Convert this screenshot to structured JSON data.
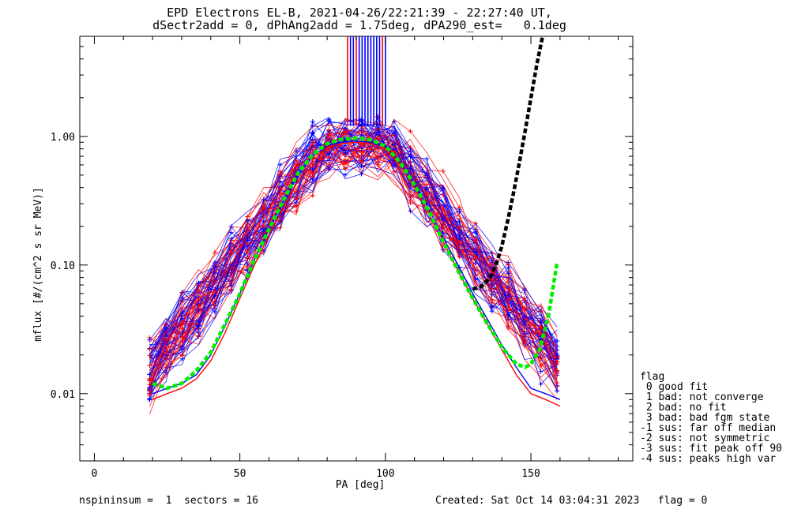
{
  "title_line1": "EPD Electrons EL-B, 2021-04-26/22:21:39 - 22:27:40 UT,",
  "title_line2": "dSectr2add = 0, dPhAng2add = 1.75deg, dPA290_est=   0.1deg",
  "footer_left": "nspininsum =  1  sectors = 16",
  "footer_right": "Created: Sat Oct 14 03:04:31 2023   flag = 0",
  "legend": {
    "title": "flag",
    "items": [
      " 0 good fit",
      " 1 bad: not converge",
      " 2 bad: no fit",
      " 3 bad: bad fgm state",
      "-1 sus: far off median",
      "-2 sus: not symmetric",
      "-3 sus: fit peak off 90",
      "-4 sus: peaks high var"
    ]
  },
  "colors": {
    "series_a": "#ff0000",
    "series_b": "#0000ff",
    "fit_main": "#00ee00",
    "fit_alt": "#000000"
  },
  "chart_data": {
    "type": "line",
    "xlabel": "PA [deg]",
    "ylabel": "mflux [#/(cm^2 s sr MeV)]",
    "xlim": [
      -5,
      185
    ],
    "ylim": [
      0.003,
      6.0
    ],
    "yscale": "log",
    "xticks": [
      0,
      50,
      100,
      150
    ],
    "xtick_labels": [
      "0",
      "50",
      "100",
      "150"
    ],
    "yticks": [
      0.01,
      0.1,
      1.0
    ],
    "ytick_labels": [
      "0.01",
      "0.10",
      "1.00"
    ],
    "series": [
      {
        "color": "red",
        "x": [
          20,
          25,
          30,
          35,
          40,
          45,
          50,
          55,
          60,
          65,
          70,
          75,
          80,
          85,
          90,
          95,
          100,
          105,
          110,
          115,
          120,
          125,
          130,
          135,
          140,
          145,
          150,
          155,
          160
        ],
        "y": [
          0.009,
          0.01,
          0.011,
          0.013,
          0.018,
          0.03,
          0.055,
          0.1,
          0.17,
          0.28,
          0.45,
          0.65,
          0.82,
          0.88,
          0.9,
          0.88,
          0.8,
          0.6,
          0.4,
          0.25,
          0.15,
          0.09,
          0.055,
          0.035,
          0.022,
          0.014,
          0.01,
          0.009,
          0.008
        ]
      },
      {
        "color": "blue",
        "x": [
          20,
          25,
          30,
          35,
          40,
          45,
          50,
          55,
          60,
          65,
          70,
          75,
          80,
          85,
          90,
          95,
          100,
          105,
          110,
          115,
          120,
          125,
          130,
          135,
          140,
          145,
          150,
          155,
          160
        ],
        "y": [
          0.01,
          0.011,
          0.012,
          0.014,
          0.02,
          0.034,
          0.06,
          0.11,
          0.19,
          0.31,
          0.5,
          0.7,
          0.85,
          0.9,
          0.92,
          0.9,
          0.83,
          0.63,
          0.42,
          0.27,
          0.16,
          0.1,
          0.06,
          0.038,
          0.024,
          0.016,
          0.011,
          0.01,
          0.009
        ]
      },
      {
        "color": "green",
        "x": [
          20,
          25,
          30,
          35,
          40,
          45,
          50,
          55,
          60,
          65,
          70,
          75,
          80,
          85,
          90,
          95,
          100,
          105,
          110,
          115,
          120,
          125,
          130,
          135,
          140,
          145,
          148,
          150,
          153,
          156,
          159
        ],
        "y": [
          0.012,
          0.011,
          0.012,
          0.015,
          0.021,
          0.035,
          0.06,
          0.11,
          0.19,
          0.32,
          0.52,
          0.72,
          0.88,
          0.95,
          0.97,
          0.94,
          0.84,
          0.63,
          0.42,
          0.26,
          0.15,
          0.09,
          0.055,
          0.035,
          0.023,
          0.017,
          0.016,
          0.017,
          0.022,
          0.04,
          0.105
        ]
      },
      {
        "color": "black",
        "x": [
          130,
          133,
          136,
          138,
          140,
          142,
          144,
          146,
          148,
          150,
          152,
          154
        ],
        "y": [
          0.065,
          0.068,
          0.08,
          0.1,
          0.14,
          0.22,
          0.36,
          0.62,
          1.1,
          2.0,
          3.6,
          6.0
        ]
      }
    ],
    "spike_x": [
      87,
      88,
      89,
      90,
      91,
      92,
      93,
      94,
      95,
      96,
      97,
      98,
      99,
      100
    ],
    "spike_ymin": 1.2,
    "spike_ymax": 6.0
  }
}
